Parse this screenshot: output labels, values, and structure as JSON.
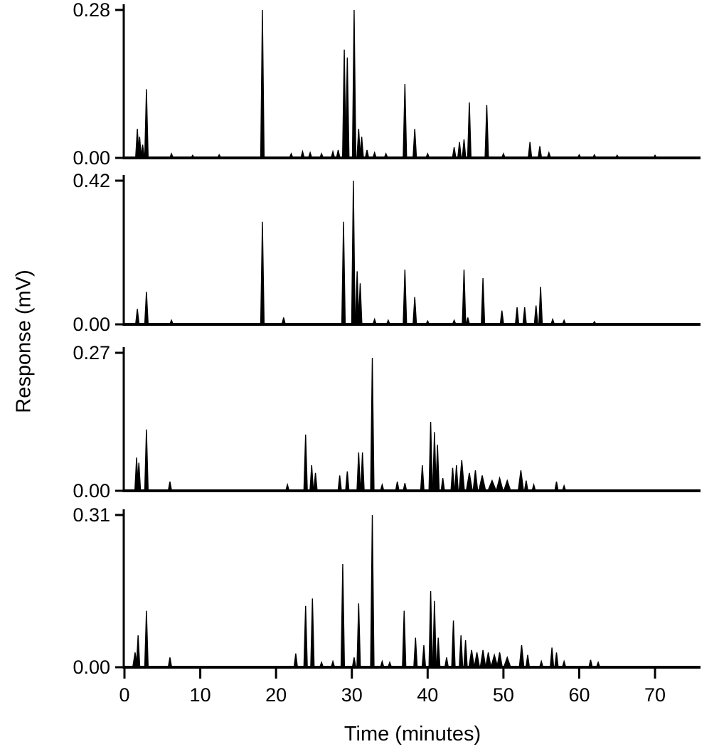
{
  "chart_data": {
    "type": "line",
    "chart_kind": "chromatogram-stack",
    "title": "",
    "xlabel": "Time (minutes)",
    "ylabel": "Response (mV)",
    "xlim": [
      0,
      76
    ],
    "xticks": [
      0,
      10,
      20,
      30,
      40,
      50,
      60,
      70
    ],
    "xtick_labels": [
      "0",
      "10",
      "20",
      "30",
      "40",
      "50",
      "60",
      "70"
    ],
    "line_color": "#000000",
    "background": "#ffffff",
    "legend": "none",
    "grid": false,
    "panels": [
      {
        "ylim": [
          0,
          0.28
        ],
        "ymax_label": "0.28",
        "yzero_label": "0.00",
        "peaks": [
          [
            1.7,
            0.055
          ],
          [
            2.0,
            0.04
          ],
          [
            2.4,
            0.025
          ],
          [
            2.9,
            0.13
          ],
          [
            6.2,
            0.008
          ],
          [
            9.0,
            0.005
          ],
          [
            12.5,
            0.006
          ],
          [
            18.2,
            0.28
          ],
          [
            22.0,
            0.008
          ],
          [
            23.5,
            0.012
          ],
          [
            24.5,
            0.01
          ],
          [
            26.0,
            0.008
          ],
          [
            27.5,
            0.012
          ],
          [
            28.2,
            0.015
          ],
          [
            29.0,
            0.205
          ],
          [
            29.4,
            0.19
          ],
          [
            30.3,
            0.28
          ],
          [
            30.9,
            0.055
          ],
          [
            31.3,
            0.04
          ],
          [
            32.0,
            0.015
          ],
          [
            33.0,
            0.01
          ],
          [
            34.5,
            0.008
          ],
          [
            37.0,
            0.14
          ],
          [
            38.3,
            0.055
          ],
          [
            40.0,
            0.008
          ],
          [
            43.5,
            0.02
          ],
          [
            44.2,
            0.03
          ],
          [
            44.8,
            0.035
          ],
          [
            45.5,
            0.105
          ],
          [
            47.8,
            0.1
          ],
          [
            50.0,
            0.008
          ],
          [
            53.5,
            0.03
          ],
          [
            54.8,
            0.022
          ],
          [
            56.0,
            0.01
          ],
          [
            60.0,
            0.006
          ],
          [
            62.0,
            0.006
          ],
          [
            65.0,
            0.005
          ],
          [
            70.0,
            0.005
          ]
        ]
      },
      {
        "ylim": [
          0,
          0.42
        ],
        "ymax_label": "0.42",
        "yzero_label": "0.00",
        "peaks": [
          [
            1.7,
            0.045
          ],
          [
            2.9,
            0.095
          ],
          [
            6.2,
            0.012
          ],
          [
            18.2,
            0.3
          ],
          [
            21.0,
            0.02
          ],
          [
            28.9,
            0.3
          ],
          [
            30.2,
            0.42
          ],
          [
            30.7,
            0.155
          ],
          [
            31.1,
            0.12
          ],
          [
            33.0,
            0.015
          ],
          [
            34.8,
            0.012
          ],
          [
            37.0,
            0.16
          ],
          [
            38.3,
            0.08
          ],
          [
            40.0,
            0.01
          ],
          [
            43.5,
            0.012
          ],
          [
            44.8,
            0.16
          ],
          [
            45.3,
            0.02
          ],
          [
            47.3,
            0.135
          ],
          [
            49.8,
            0.04
          ],
          [
            51.8,
            0.05
          ],
          [
            52.8,
            0.05
          ],
          [
            54.3,
            0.055
          ],
          [
            54.9,
            0.11
          ],
          [
            56.5,
            0.015
          ],
          [
            58.0,
            0.012
          ],
          [
            62.0,
            0.008
          ]
        ]
      },
      {
        "ylim": [
          0,
          0.27
        ],
        "ymax_label": "0.27",
        "yzero_label": "0.00",
        "peaks": [
          [
            1.6,
            0.065
          ],
          [
            1.9,
            0.055
          ],
          [
            2.9,
            0.12
          ],
          [
            6.0,
            0.018
          ],
          [
            21.5,
            0.012
          ],
          [
            23.9,
            0.11
          ],
          [
            24.7,
            0.05
          ],
          [
            25.2,
            0.035
          ],
          [
            28.4,
            0.03
          ],
          [
            29.4,
            0.038
          ],
          [
            30.9,
            0.075
          ],
          [
            31.4,
            0.075
          ],
          [
            32.7,
            0.26
          ],
          [
            34.0,
            0.012
          ],
          [
            36.0,
            0.018
          ],
          [
            37.0,
            0.015
          ],
          [
            39.3,
            0.05
          ],
          [
            40.4,
            0.135
          ],
          [
            40.9,
            0.115
          ],
          [
            41.3,
            0.09
          ],
          [
            42.0,
            0.025
          ],
          [
            43.3,
            0.045
          ],
          [
            43.8,
            0.05
          ],
          [
            44.5,
            0.06,
            0.7
          ],
          [
            45.5,
            0.035,
            0.8
          ],
          [
            46.3,
            0.04,
            0.6
          ],
          [
            47.2,
            0.03,
            0.9
          ],
          [
            48.5,
            0.02,
            1.1
          ],
          [
            49.5,
            0.025,
            0.9
          ],
          [
            50.5,
            0.02,
            0.9
          ],
          [
            52.3,
            0.04,
            0.7
          ],
          [
            53.0,
            0.02
          ],
          [
            54.0,
            0.012
          ],
          [
            57.0,
            0.018
          ],
          [
            58.0,
            0.01
          ]
        ]
      },
      {
        "ylim": [
          0,
          0.31
        ],
        "ymax_label": "0.31",
        "yzero_label": "0.00",
        "peaks": [
          [
            1.4,
            0.03,
            0.6
          ],
          [
            1.8,
            0.065
          ],
          [
            2.9,
            0.115
          ],
          [
            6.0,
            0.02
          ],
          [
            22.6,
            0.028
          ],
          [
            23.9,
            0.125
          ],
          [
            24.8,
            0.14
          ],
          [
            26.0,
            0.01
          ],
          [
            27.5,
            0.012
          ],
          [
            28.8,
            0.21
          ],
          [
            30.3,
            0.02
          ],
          [
            30.9,
            0.13
          ],
          [
            32.7,
            0.31
          ],
          [
            34.0,
            0.012
          ],
          [
            35.0,
            0.01
          ],
          [
            36.9,
            0.115
          ],
          [
            38.4,
            0.06
          ],
          [
            39.5,
            0.045
          ],
          [
            40.4,
            0.155
          ],
          [
            40.9,
            0.135
          ],
          [
            41.4,
            0.06
          ],
          [
            42.5,
            0.02
          ],
          [
            43.4,
            0.095
          ],
          [
            44.4,
            0.065
          ],
          [
            45.0,
            0.055
          ],
          [
            45.8,
            0.035,
            0.7
          ],
          [
            46.5,
            0.03,
            0.7
          ],
          [
            47.3,
            0.035,
            0.7
          ],
          [
            48.0,
            0.03,
            0.7
          ],
          [
            48.8,
            0.025,
            0.9
          ],
          [
            49.5,
            0.03,
            0.7
          ],
          [
            50.5,
            0.02,
            0.9
          ],
          [
            52.4,
            0.045,
            0.6
          ],
          [
            53.2,
            0.025
          ],
          [
            55.0,
            0.012
          ],
          [
            56.4,
            0.04
          ],
          [
            57.0,
            0.03
          ],
          [
            58.0,
            0.012
          ],
          [
            61.5,
            0.015
          ],
          [
            62.5,
            0.01
          ]
        ]
      }
    ]
  }
}
